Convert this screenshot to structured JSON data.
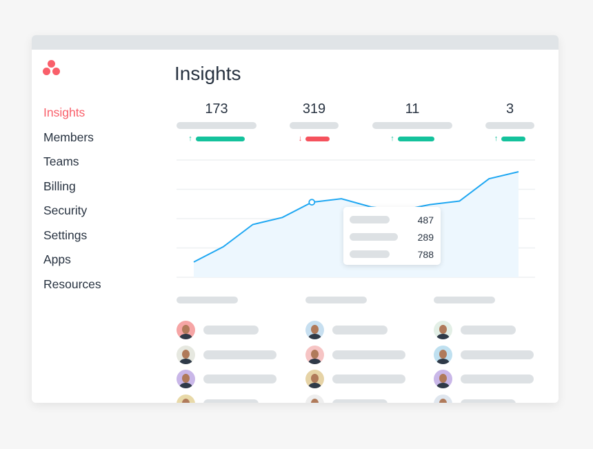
{
  "sidebar": {
    "logo": "asana-logo",
    "items": [
      {
        "label": "Insights",
        "active": true
      },
      {
        "label": "Members"
      },
      {
        "label": "Teams"
      },
      {
        "label": "Billing"
      },
      {
        "label": "Security"
      },
      {
        "label": "Settings"
      },
      {
        "label": "Apps"
      },
      {
        "label": "Resources"
      }
    ]
  },
  "header": {
    "title": "Insights"
  },
  "stats": [
    {
      "value": "173",
      "trend": "up"
    },
    {
      "value": "319",
      "trend": "down"
    },
    {
      "value": "11",
      "trend": "up"
    },
    {
      "value": "3",
      "trend": "up"
    }
  ],
  "colors": {
    "accent": "#f95f6a",
    "up": "#14c29c",
    "down": "#f5525d",
    "line": "#1ea7f2",
    "fill": "#edf7fe"
  },
  "chart_data": {
    "type": "area",
    "x": [
      1,
      2,
      3,
      4,
      5,
      6,
      7,
      8,
      9,
      10,
      11,
      12
    ],
    "values": [
      13,
      26,
      45,
      51,
      64,
      67,
      60,
      57,
      62,
      65,
      84,
      90
    ],
    "ylim": [
      0,
      100
    ],
    "grid": true,
    "highlight_index": 4
  },
  "tooltip": {
    "values": [
      "487",
      "289",
      "788"
    ]
  },
  "people_columns": [
    {
      "avatars": [
        "#f6a5a5",
        "#e6e8e0",
        "#c9b7e8",
        "#e8d9a8"
      ]
    },
    {
      "avatars": [
        "#c7dff0",
        "#f6c4c4",
        "#e6d3a6",
        "#eeeeee"
      ]
    },
    {
      "avatars": [
        "#e3efe6",
        "#bfe0f0",
        "#c9b7e8",
        "#dfe6ee"
      ]
    }
  ]
}
